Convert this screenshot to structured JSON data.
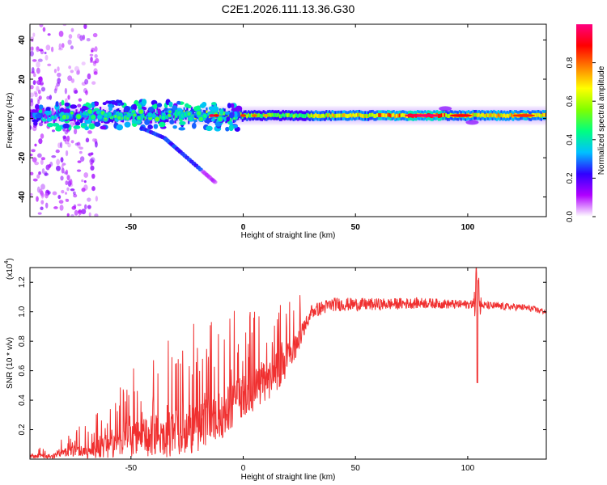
{
  "title": "C2E1.2026.111.13.36.G30",
  "chart_data": [
    {
      "type": "heatmap",
      "xlabel": "Height of straight line (km)",
      "ylabel": "Frequency (Hz)",
      "xlim": [
        -95,
        135
      ],
      "ylim": [
        -50,
        48
      ],
      "xticks": [
        -50,
        0,
        50,
        100
      ],
      "yticks": [
        -40,
        -20,
        0,
        20,
        40
      ],
      "colorbar": {
        "label": "Normalized spectral amplitude",
        "range": [
          0,
          1
        ],
        "ticks": [
          "0.0",
          "0.2",
          "0.4",
          "0.6",
          "0.8"
        ],
        "tick_values": [
          0,
          0.2,
          0.4,
          0.6,
          0.8
        ],
        "colors": [
          "#ffffff",
          "#b000ff",
          "#3000ff",
          "#00c0ff",
          "#00ff80",
          "#80ff00",
          "#ffff00",
          "#ff8000",
          "#ff0000",
          "#ff0080"
        ]
      },
      "ridge": {
        "frequency_hz": 1.5,
        "segments": [
          {
            "x_from": -95,
            "x_to": -90,
            "amplitude": 0.25
          },
          {
            "x_from": -90,
            "x_to": -60,
            "amplitude": 0.35
          },
          {
            "x_from": -60,
            "x_to": -30,
            "amplitude": 0.45
          },
          {
            "x_from": -30,
            "x_to": 0,
            "amplitude": 0.6
          },
          {
            "x_from": 0,
            "x_to": 30,
            "amplitude": 0.55
          },
          {
            "x_from": 30,
            "x_to": 60,
            "amplitude": 0.7
          },
          {
            "x_from": 60,
            "x_to": 90,
            "amplitude": 0.85
          },
          {
            "x_from": 90,
            "x_to": 110,
            "amplitude": 0.7
          },
          {
            "x_from": 110,
            "x_to": 135,
            "amplitude": 0.75
          }
        ]
      },
      "branch": [
        {
          "x": -45,
          "freq": -5
        },
        {
          "x": -35,
          "freq": -10
        },
        {
          "x": -28,
          "freq": -17
        },
        {
          "x": -18,
          "freq": -27
        },
        {
          "x": -12,
          "freq": -33
        }
      ]
    },
    {
      "type": "line",
      "xlabel": "Height of straight line (km)",
      "ylabel": "SNR (10 * v/v)",
      "multiplier_label": "(x10",
      "multiplier_exp": "4",
      "multiplier_close": ")",
      "xlim": [
        -95,
        135
      ],
      "ylim": [
        0,
        1.3
      ],
      "xticks": [
        -50,
        0,
        50,
        100
      ],
      "yticks": [
        "0.2",
        "0.4",
        "0.6",
        "0.8",
        "1.0",
        "1.2"
      ],
      "ytick_values": [
        0.2,
        0.4,
        0.6,
        0.8,
        1.0,
        1.2
      ],
      "color": "#f03030",
      "trend": [
        [
          -95,
          0.03
        ],
        [
          -85,
          0.04
        ],
        [
          -78,
          0.08
        ],
        [
          -70,
          0.1
        ],
        [
          -60,
          0.16
        ],
        [
          -50,
          0.24
        ],
        [
          -40,
          0.3
        ],
        [
          -30,
          0.34
        ],
        [
          -20,
          0.38
        ],
        [
          -10,
          0.46
        ],
        [
          0,
          0.58
        ],
        [
          10,
          0.66
        ],
        [
          20,
          0.8
        ],
        [
          30,
          1.0
        ],
        [
          40,
          1.05
        ],
        [
          60,
          1.05
        ],
        [
          80,
          1.06
        ],
        [
          95,
          1.05
        ],
        [
          100,
          1.05
        ],
        [
          110,
          1.04
        ],
        [
          125,
          1.03
        ],
        [
          135,
          1.0
        ]
      ],
      "noise_amplitude": [
        [
          -95,
          0.02
        ],
        [
          -80,
          0.05
        ],
        [
          -60,
          0.15
        ],
        [
          -40,
          0.3
        ],
        [
          -20,
          0.35
        ],
        [
          0,
          0.3
        ],
        [
          20,
          0.25
        ],
        [
          30,
          0.05
        ],
        [
          100,
          0.03
        ],
        [
          135,
          0.02
        ]
      ],
      "features": [
        {
          "x": 103.8,
          "value": 1.29
        },
        {
          "x": 104.3,
          "value": 0.59
        },
        {
          "x": 104.8,
          "value": 1.24
        }
      ]
    }
  ]
}
